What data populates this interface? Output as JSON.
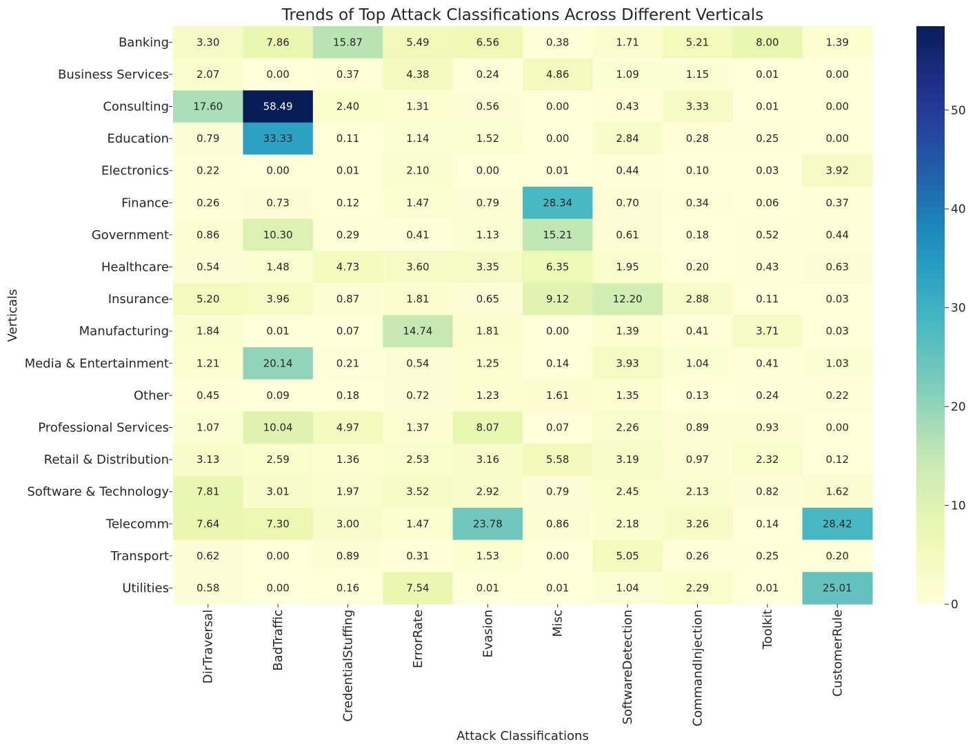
{
  "chart_data": {
    "type": "heatmap",
    "title": "Trends of Top Attack Classifications Across Different Verticals",
    "xlabel": "Attack Classifications",
    "ylabel": "Verticals",
    "columns": [
      "DirTraversal",
      "BadTraffic",
      "CredentialStuffing",
      "ErrorRate",
      "Evasion",
      "Misc",
      "SoftwareDetection",
      "CommandInjection",
      "Toolkit",
      "CustomerRule"
    ],
    "rows": [
      "Banking",
      "Business Services",
      "Consulting",
      "Education",
      "Electronics",
      "Finance",
      "Government",
      "Healthcare",
      "Insurance",
      "Manufacturing",
      "Media & Entertainment",
      "Other",
      "Professional Services",
      "Retail & Distribution",
      "Software & Technology",
      "Telecomm",
      "Transport",
      "Utilities"
    ],
    "values": [
      [
        3.3,
        7.86,
        15.87,
        5.49,
        6.56,
        0.38,
        1.71,
        5.21,
        8.0,
        1.39
      ],
      [
        2.07,
        0.0,
        0.37,
        4.38,
        0.24,
        4.86,
        1.09,
        1.15,
        0.01,
        0.0
      ],
      [
        17.6,
        58.49,
        2.4,
        1.31,
        0.56,
        0.0,
        0.43,
        3.33,
        0.01,
        0.0
      ],
      [
        0.79,
        33.33,
        0.11,
        1.14,
        1.52,
        0.0,
        2.84,
        0.28,
        0.25,
        0.0
      ],
      [
        0.22,
        0.0,
        0.01,
        2.1,
        0.0,
        0.01,
        0.44,
        0.1,
        0.03,
        3.92
      ],
      [
        0.26,
        0.73,
        0.12,
        1.47,
        0.79,
        28.34,
        0.7,
        0.34,
        0.06,
        0.37
      ],
      [
        0.86,
        10.3,
        0.29,
        0.41,
        1.13,
        15.21,
        0.61,
        0.18,
        0.52,
        0.44
      ],
      [
        0.54,
        1.48,
        4.73,
        3.6,
        3.35,
        6.35,
        1.95,
        0.2,
        0.43,
        0.63
      ],
      [
        5.2,
        3.96,
        0.87,
        1.81,
        0.65,
        9.12,
        12.2,
        2.88,
        0.11,
        0.03
      ],
      [
        1.84,
        0.01,
        0.07,
        14.74,
        1.81,
        0.0,
        1.39,
        0.41,
        3.71,
        0.03
      ],
      [
        1.21,
        20.14,
        0.21,
        0.54,
        1.25,
        0.14,
        3.93,
        1.04,
        0.41,
        1.03
      ],
      [
        0.45,
        0.09,
        0.18,
        0.72,
        1.23,
        1.61,
        1.35,
        0.13,
        0.24,
        0.22
      ],
      [
        1.07,
        10.04,
        4.97,
        1.37,
        8.07,
        0.07,
        2.26,
        0.89,
        0.93,
        0.0
      ],
      [
        3.13,
        2.59,
        1.36,
        2.53,
        3.16,
        5.58,
        3.19,
        0.97,
        2.32,
        0.12
      ],
      [
        7.81,
        3.01,
        1.97,
        3.52,
        2.92,
        0.79,
        2.45,
        2.13,
        0.82,
        1.62
      ],
      [
        7.64,
        7.3,
        3.0,
        1.47,
        23.78,
        0.86,
        2.18,
        3.26,
        0.14,
        28.42
      ],
      [
        0.62,
        0.0,
        0.89,
        0.31,
        1.53,
        0.0,
        5.05,
        0.26,
        0.25,
        0.2
      ],
      [
        0.58,
        0.0,
        0.16,
        7.54,
        0.01,
        0.01,
        1.04,
        2.29,
        0.01,
        25.01
      ]
    ],
    "colormap": "YlGnBu",
    "vmin": 0,
    "vmax": 58.49,
    "colorbar_ticks": [
      0,
      10,
      20,
      30,
      40,
      50
    ],
    "annotation_format": "2 decimals"
  }
}
